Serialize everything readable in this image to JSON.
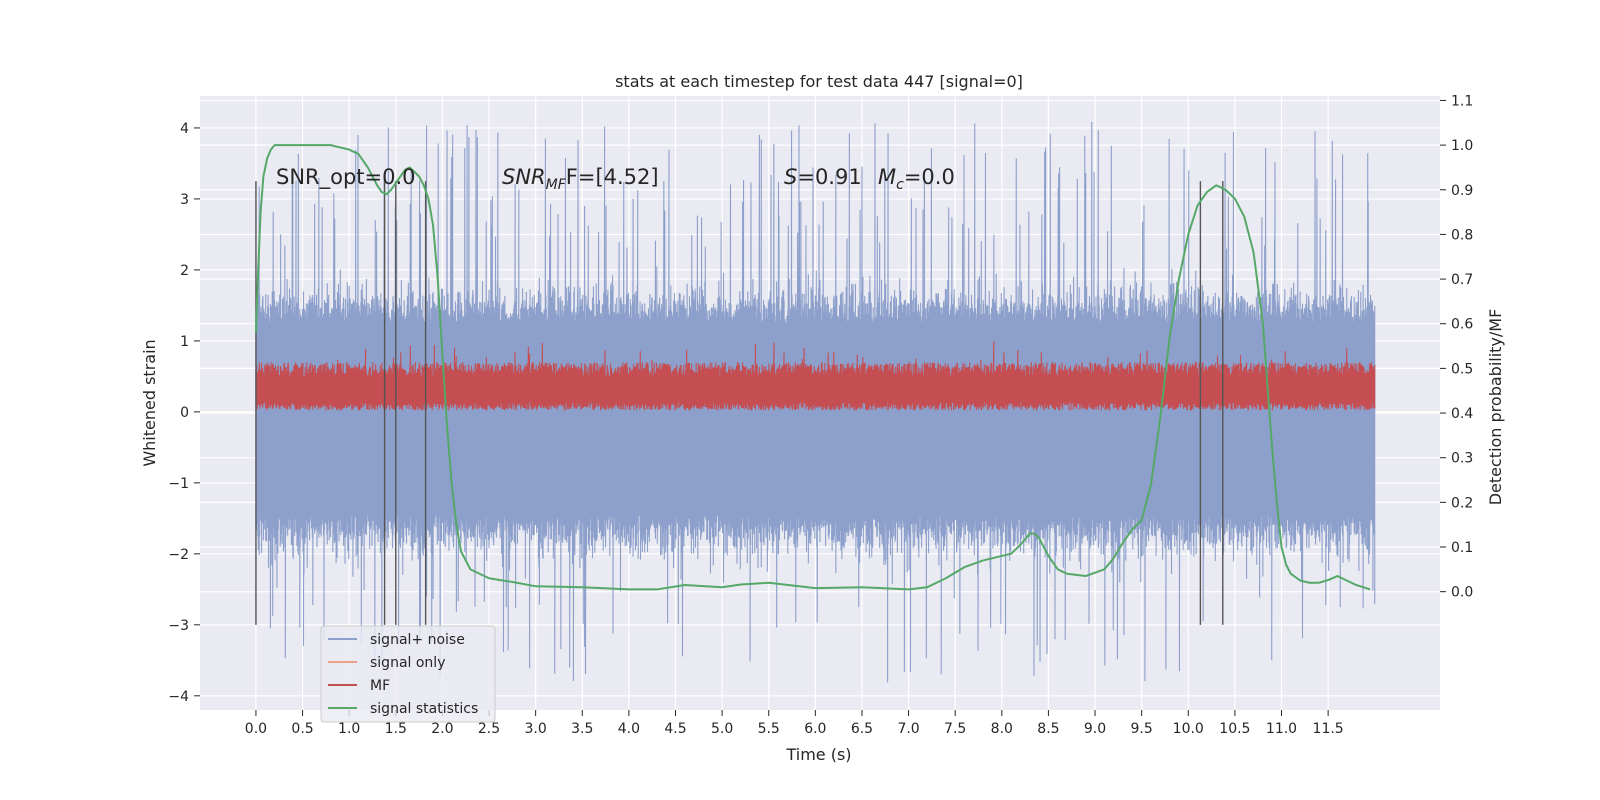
{
  "chart_data": {
    "type": "line",
    "title": "stats at each timestep for test data 447 [signal=0]",
    "xlabel": "Time (s)",
    "ylabel": "Whitened strain",
    "y2label": "Detection probability/MF",
    "xlim": [
      -0.6,
      12.7
    ],
    "ylim": [
      -4.2,
      4.45
    ],
    "y2lim": [
      -0.265,
      1.11
    ],
    "x_ticks": [
      0.0,
      0.5,
      1.0,
      1.5,
      2.0,
      2.5,
      3.0,
      3.5,
      4.0,
      4.5,
      5.0,
      5.5,
      6.0,
      6.5,
      7.0,
      7.5,
      8.0,
      8.5,
      9.0,
      9.5,
      10.0,
      10.5,
      11.0,
      11.5
    ],
    "x_tick_labels": [
      "0.0",
      "0.5",
      "1.0",
      "1.5",
      "2.0",
      "2.5",
      "3.0",
      "3.5",
      "4.0",
      "4.5",
      "5.0",
      "5.5",
      "6.0",
      "6.5",
      "7.0",
      "7.5",
      "8.0",
      "8.5",
      "9.0",
      "9.5",
      "10.0",
      "10.5",
      "11.0",
      "11.5"
    ],
    "y_ticks": [
      -4,
      -3,
      -2,
      -1,
      0,
      1,
      2,
      3,
      4
    ],
    "y_tick_labels": [
      "−4",
      "−3",
      "−2",
      "−1",
      "0",
      "1",
      "2",
      "3",
      "4"
    ],
    "y2_ticks": [
      0.0,
      0.1,
      0.2,
      0.3,
      0.4,
      0.5,
      0.6,
      0.7,
      0.8,
      0.9,
      1.0,
      1.1
    ],
    "y2_tick_labels": [
      "0.0",
      "0.1",
      "0.2",
      "0.3",
      "0.4",
      "0.5",
      "0.6",
      "0.7",
      "0.8",
      "0.9",
      "1.0",
      "1.1"
    ],
    "grid": true,
    "legend_position": "lower-left",
    "annotations": {
      "snr_opt": "SNR_opt=0.0",
      "snr_mf_main": "SNR",
      "snr_mf_sub": "MF",
      "snr_mf_value": "F=[4.52]",
      "s_symbol": "S",
      "s_value": "=0.91",
      "mc_symbol": "M",
      "mc_sub": "c",
      "mc_value": "=0.0"
    },
    "series": [
      {
        "name": "signal+ noise",
        "color": "#8da0cb",
        "x_range": [
          0.0,
          12.0
        ],
        "band_typical": [
          -1.8,
          2.1
        ],
        "extremes": [
          -3.85,
          4.1
        ]
      },
      {
        "name": "signal only",
        "color": "#e8a38a",
        "x": [],
        "y": []
      },
      {
        "name": "MF",
        "color": "#c44e52",
        "x_range": [
          0.0,
          12.0
        ],
        "band_typical": [
          0.0,
          0.75
        ],
        "extremes": [
          0.0,
          1.0
        ]
      },
      {
        "name": "signal statistics",
        "color": "#55a868",
        "axis": "right",
        "x": [
          0.0,
          0.02,
          0.05,
          0.08,
          0.12,
          0.16,
          0.2,
          0.3,
          0.5,
          0.8,
          1.0,
          1.1,
          1.2,
          1.3,
          1.35,
          1.4,
          1.45,
          1.5,
          1.55,
          1.6,
          1.65,
          1.7,
          1.75,
          1.8,
          1.85,
          1.9,
          1.95,
          2.0,
          2.05,
          2.1,
          2.15,
          2.2,
          2.3,
          2.5,
          2.8,
          3.0,
          3.5,
          4.0,
          4.3,
          4.6,
          5.0,
          5.2,
          5.5,
          6.0,
          6.5,
          7.0,
          7.2,
          7.4,
          7.6,
          7.8,
          8.0,
          8.1,
          8.2,
          8.3,
          8.35,
          8.4,
          8.5,
          8.6,
          8.7,
          8.9,
          9.1,
          9.2,
          9.3,
          9.4,
          9.5,
          9.6,
          9.7,
          9.8,
          9.9,
          10.0,
          10.1,
          10.2,
          10.3,
          10.4,
          10.5,
          10.6,
          10.7,
          10.8,
          10.85,
          10.9,
          10.95,
          11.0,
          11.05,
          11.1,
          11.2,
          11.3,
          11.4,
          11.5,
          11.6,
          11.7,
          11.8,
          11.95
        ],
        "y": [
          0.58,
          0.7,
          0.85,
          0.93,
          0.97,
          0.99,
          1.0,
          1.0,
          1.0,
          1.0,
          0.99,
          0.98,
          0.95,
          0.91,
          0.895,
          0.89,
          0.9,
          0.915,
          0.93,
          0.945,
          0.95,
          0.94,
          0.93,
          0.91,
          0.88,
          0.82,
          0.7,
          0.53,
          0.37,
          0.24,
          0.15,
          0.09,
          0.05,
          0.03,
          0.02,
          0.012,
          0.01,
          0.005,
          0.005,
          0.015,
          0.01,
          0.016,
          0.02,
          0.008,
          0.01,
          0.005,
          0.01,
          0.03,
          0.055,
          0.07,
          0.08,
          0.085,
          0.105,
          0.13,
          0.13,
          0.12,
          0.08,
          0.05,
          0.04,
          0.035,
          0.05,
          0.075,
          0.11,
          0.14,
          0.16,
          0.24,
          0.39,
          0.57,
          0.7,
          0.8,
          0.865,
          0.895,
          0.91,
          0.9,
          0.88,
          0.84,
          0.76,
          0.6,
          0.46,
          0.32,
          0.2,
          0.1,
          0.06,
          0.04,
          0.025,
          0.02,
          0.02,
          0.026,
          0.035,
          0.025,
          0.015,
          0.005
        ]
      }
    ],
    "vertical_markers": [
      {
        "x": 0.0,
        "ymin": -3.0,
        "ymax": 3.25
      },
      {
        "x": 1.38,
        "ymin": -3.0,
        "ymax": 3.25
      },
      {
        "x": 1.5,
        "ymin": -3.0,
        "ymax": 3.25
      },
      {
        "x": 1.82,
        "ymin": -3.0,
        "ymax": 3.25
      },
      {
        "x": 10.13,
        "ymin": -3.0,
        "ymax": 3.25
      },
      {
        "x": 10.37,
        "ymin": -3.0,
        "ymax": 3.25
      }
    ]
  }
}
